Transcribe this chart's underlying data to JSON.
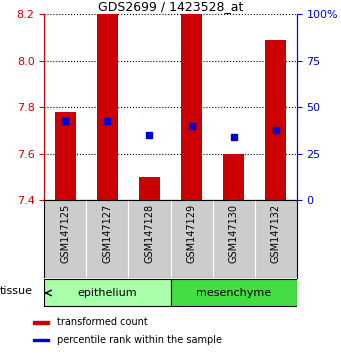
{
  "title": "GDS2699 / 1423528_at",
  "samples": [
    "GSM147125",
    "GSM147127",
    "GSM147128",
    "GSM147129",
    "GSM147130",
    "GSM147132"
  ],
  "red_bar_tops": [
    7.78,
    8.2,
    7.5,
    8.2,
    7.6,
    8.09
  ],
  "blue_square_y": [
    7.74,
    7.74,
    7.68,
    7.72,
    7.67,
    7.7
  ],
  "bar_baseline": 7.4,
  "ylim_left": [
    7.4,
    8.2
  ],
  "ylim_right": [
    0,
    100
  ],
  "yticks_left": [
    7.4,
    7.6,
    7.8,
    8.0,
    8.2
  ],
  "yticks_right": [
    0,
    25,
    50,
    75,
    100
  ],
  "ytick_right_labels": [
    "0",
    "25",
    "50",
    "75",
    "100%"
  ],
  "tissue_groups": [
    {
      "label": "epithelium",
      "samples": [
        "GSM147125",
        "GSM147127",
        "GSM147128"
      ],
      "color": "#aaffaa"
    },
    {
      "label": "mesenchyme",
      "samples": [
        "GSM147129",
        "GSM147130",
        "GSM147132"
      ],
      "color": "#44dd44"
    }
  ],
  "tissue_label": "tissue",
  "bar_color": "#cc0000",
  "square_color": "#0000cc",
  "bar_width": 0.5,
  "legend_items": [
    {
      "label": "transformed count",
      "color": "#cc0000"
    },
    {
      "label": "percentile rank within the sample",
      "color": "#0000cc"
    }
  ],
  "background_color": "#ffffff",
  "left_tick_color": "#cc0000",
  "right_tick_color": "#0000cc",
  "sample_area_color": "#cccccc",
  "fig_width": 3.41,
  "fig_height": 3.54,
  "dpi": 100
}
